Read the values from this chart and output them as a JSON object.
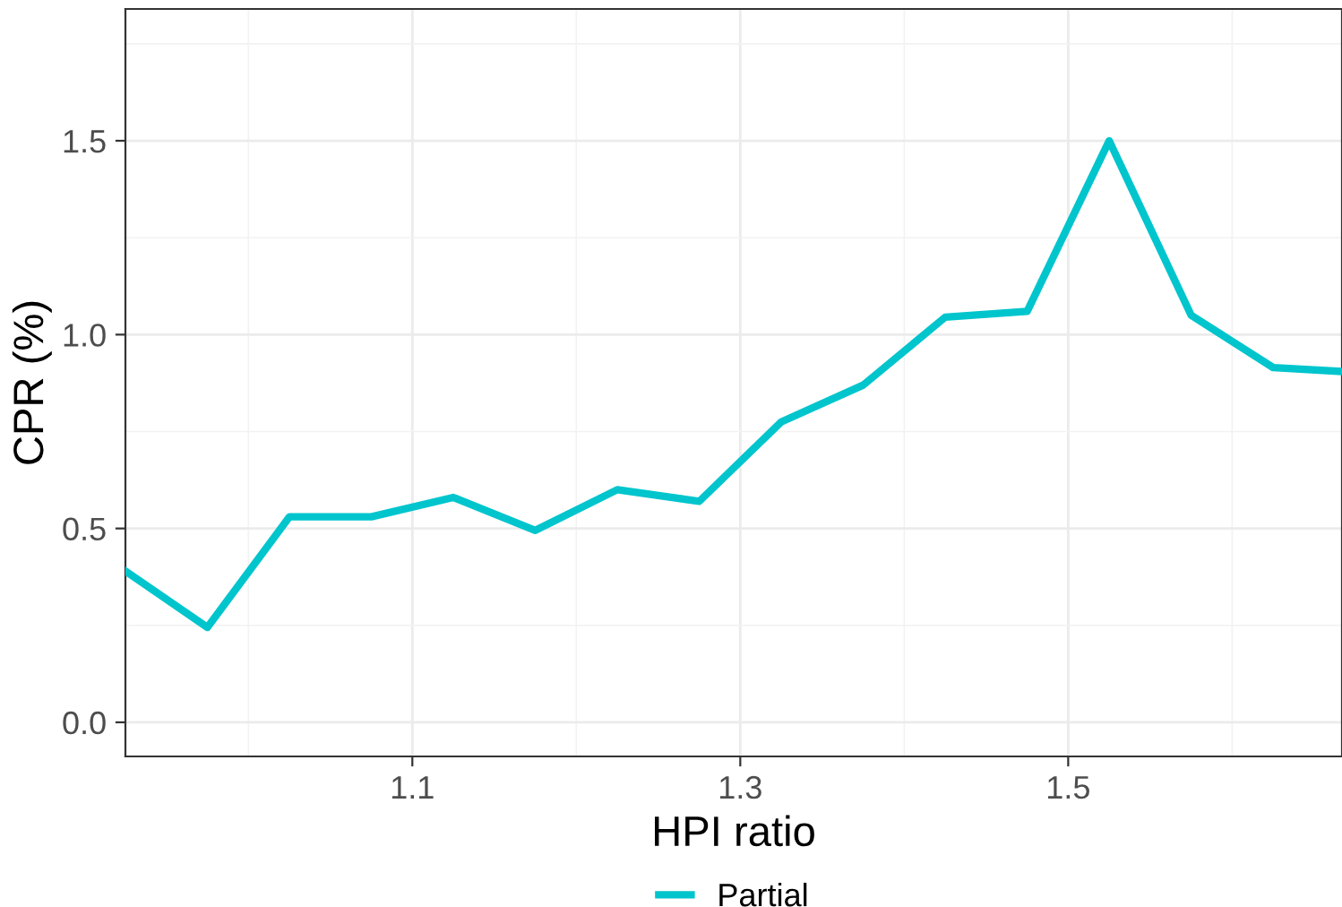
{
  "chart_data": {
    "type": "line",
    "xlabel": "HPI ratio",
    "ylabel": "CPR (%)",
    "x": [
      0.925,
      0.975,
      1.025,
      1.075,
      1.125,
      1.175,
      1.225,
      1.275,
      1.325,
      1.375,
      1.425,
      1.475,
      1.525,
      1.575,
      1.625,
      1.667
    ],
    "series": [
      {
        "name": "Partial",
        "color": "#00c5cd",
        "values": [
          0.39,
          0.245,
          0.53,
          0.53,
          0.58,
          0.495,
          0.6,
          0.57,
          0.775,
          0.87,
          1.045,
          1.06,
          1.5,
          1.05,
          0.915,
          0.905
        ]
      }
    ],
    "xlim": [
      0.925,
      1.667
    ],
    "xticks": [
      1.1,
      1.3,
      1.5
    ],
    "ylim": [
      -0.088,
      1.84
    ],
    "yticks": [
      {
        "value": 0.0,
        "label": "0.0"
      },
      {
        "value": 0.5,
        "label": "0.5"
      },
      {
        "value": 1.0,
        "label": "1.0"
      },
      {
        "value": 1.5,
        "label": "1.5"
      }
    ],
    "grid": true,
    "legend": "bottom",
    "line_style": "solid",
    "marker": "none"
  }
}
